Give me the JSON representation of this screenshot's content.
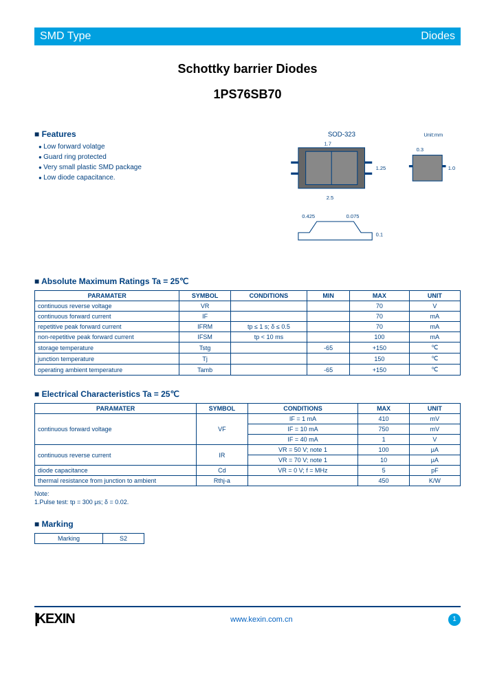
{
  "banner": {
    "left": "SMD Type",
    "right": "Diodes"
  },
  "title": {
    "main": "Schottky barrier Diodes",
    "part": "1PS76SB70"
  },
  "features": {
    "heading": "Features",
    "items": [
      "Low forward volatge",
      "Guard ring protected",
      "Very small plastic SMD package",
      "Low diode capacitance."
    ]
  },
  "package": {
    "label": "SOD-323",
    "unit_label": "Unit:mm"
  },
  "abs_max": {
    "heading": "Absolute Maximum Ratings Ta = 25℃",
    "headers": [
      "PARAMATER",
      "SYMBOL",
      "CONDITIONS",
      "MIN",
      "MAX",
      "UNIT"
    ],
    "col_widths": [
      "34%",
      "12%",
      "18%",
      "10%",
      "14%",
      "12%"
    ],
    "rows": [
      [
        "continuous reverse voltage",
        "VR",
        "",
        "",
        "70",
        "V"
      ],
      [
        "continuous forward current",
        "IF",
        "",
        "",
        "70",
        "mA"
      ],
      [
        "repetitive peak forward current",
        "IFRM",
        "tp ≤ 1 s; δ ≤ 0.5",
        "",
        "70",
        "mA"
      ],
      [
        "non-repetitive peak forward current",
        "IFSM",
        "tp < 10 ms",
        "",
        "100",
        "mA"
      ],
      [
        "storage temperature",
        "Tstg",
        "",
        "-65",
        "+150",
        "℃"
      ],
      [
        "junction temperature",
        "Tj",
        "",
        "",
        "150",
        "℃"
      ],
      [
        "operating ambient temperature",
        "Tamb",
        "",
        "-65",
        "+150",
        "℃"
      ]
    ]
  },
  "elec": {
    "heading": "Electrical Characteristics Ta = 25℃",
    "headers": [
      "PARAMATER",
      "SYMBOL",
      "CONDITIONS",
      "MAX",
      "UNIT"
    ],
    "col_widths": [
      "38%",
      "12%",
      "26%",
      "12%",
      "12%"
    ],
    "rows": [
      {
        "param": "continuous forward voltage",
        "symbol": "VF",
        "sub": [
          {
            "cond": "IF = 1 mA",
            "max": "410",
            "unit": "mV"
          },
          {
            "cond": "IF = 10 mA",
            "max": "750",
            "unit": "mV"
          },
          {
            "cond": "IF = 40 mA",
            "max": "1",
            "unit": "V"
          }
        ]
      },
      {
        "param": "continuous reverse current",
        "symbol": "IR",
        "sub": [
          {
            "cond": "VR = 50 V; note 1",
            "max": "100",
            "unit": "μA"
          },
          {
            "cond": "VR = 70 V; note 1",
            "max": "10",
            "unit": "μA"
          }
        ]
      },
      {
        "param": "diode capacitance",
        "symbol": "Cd",
        "sub": [
          {
            "cond": "VR = 0 V; f = MHz",
            "max": "5",
            "unit": "pF"
          }
        ]
      },
      {
        "param": "thermal resistance from junction to ambient",
        "symbol": "Rthj-a",
        "sub": [
          {
            "cond": "",
            "max": "450",
            "unit": "K/W"
          }
        ]
      }
    ],
    "note_label": "Note:",
    "note_text": "1.Pulse test: tp = 300 μs; δ = 0.02."
  },
  "marking": {
    "heading": "Marking",
    "label": "Marking",
    "value": "S2"
  },
  "footer": {
    "logo": "KEXIN",
    "url": "www.kexin.com.cn",
    "page": "1"
  },
  "colors": {
    "banner_bg": "#00a0e0",
    "text_blue": "#004080",
    "link_blue": "#0060c0"
  }
}
